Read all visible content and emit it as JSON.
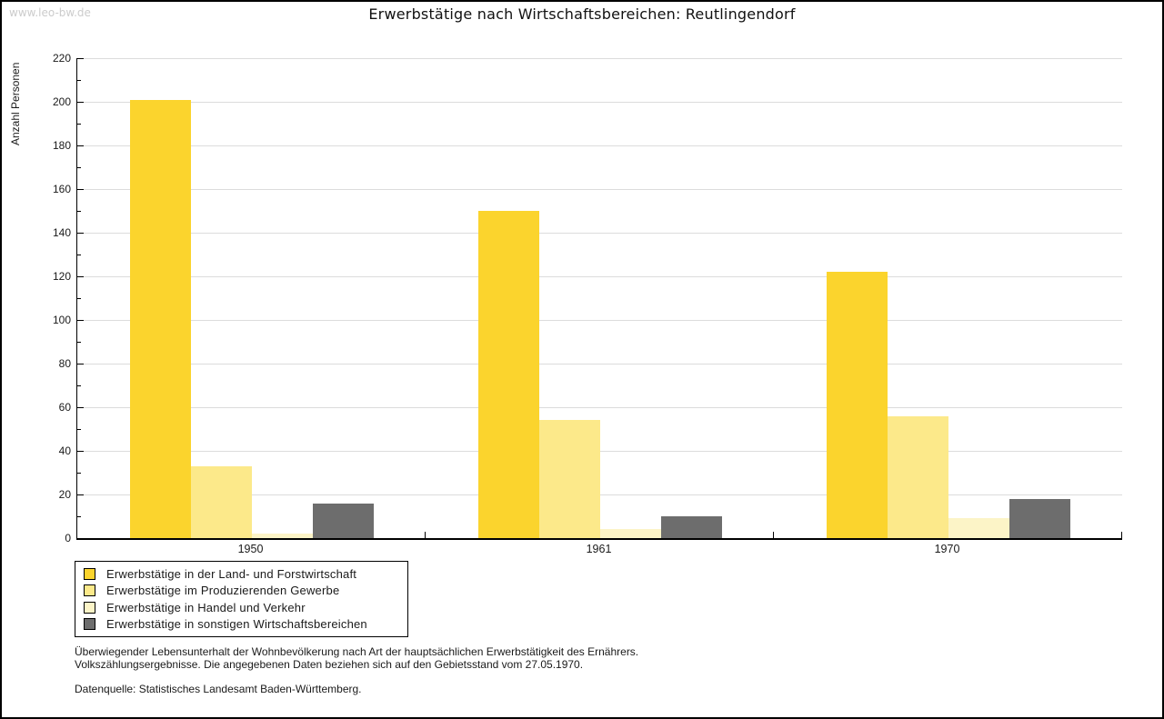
{
  "watermark": "www.leo-bw.de",
  "title": "Erwerbstätige nach Wirtschaftsbereichen: Reutlingendorf",
  "chart_data": {
    "type": "bar",
    "title": "Erwerbstätige nach Wirtschaftsbereichen: Reutlingendorf",
    "xlabel": "",
    "ylabel": "Anzahl Personen",
    "ylim": [
      0,
      220
    ],
    "ytick_step": 20,
    "yminor_step": 10,
    "grid": true,
    "legend_position": "bottom-left",
    "categories": [
      "1950",
      "1961",
      "1970"
    ],
    "series": [
      {
        "name": "Erwerbstätige in der Land- und Forstwirtschaft",
        "color": "#FBD42D",
        "values": [
          201,
          150,
          122
        ]
      },
      {
        "name": "Erwerbstätige im Produzierenden Gewerbe",
        "color": "#FCE98A",
        "values": [
          33,
          54,
          56
        ]
      },
      {
        "name": "Erwerbstätige in Handel und Verkehr",
        "color": "#FCF4C7",
        "values": [
          2,
          4,
          9
        ]
      },
      {
        "name": "Erwerbstätige in sonstigen Wirtschaftsbereichen",
        "color": "#6D6D6D",
        "values": [
          16,
          10,
          18
        ]
      }
    ]
  },
  "footnotes": [
    "Überwiegender Lebensunterhalt der Wohnbevölkerung nach Art der hauptsächlichen Erwerbstätigkeit des Ernährers.",
    "Volkszählungsergebnisse. Die angegebenen Daten beziehen sich auf den Gebietsstand vom 27.05.1970."
  ],
  "datasource": "Datenquelle: Statistisches Landesamt Baden-Württemberg."
}
